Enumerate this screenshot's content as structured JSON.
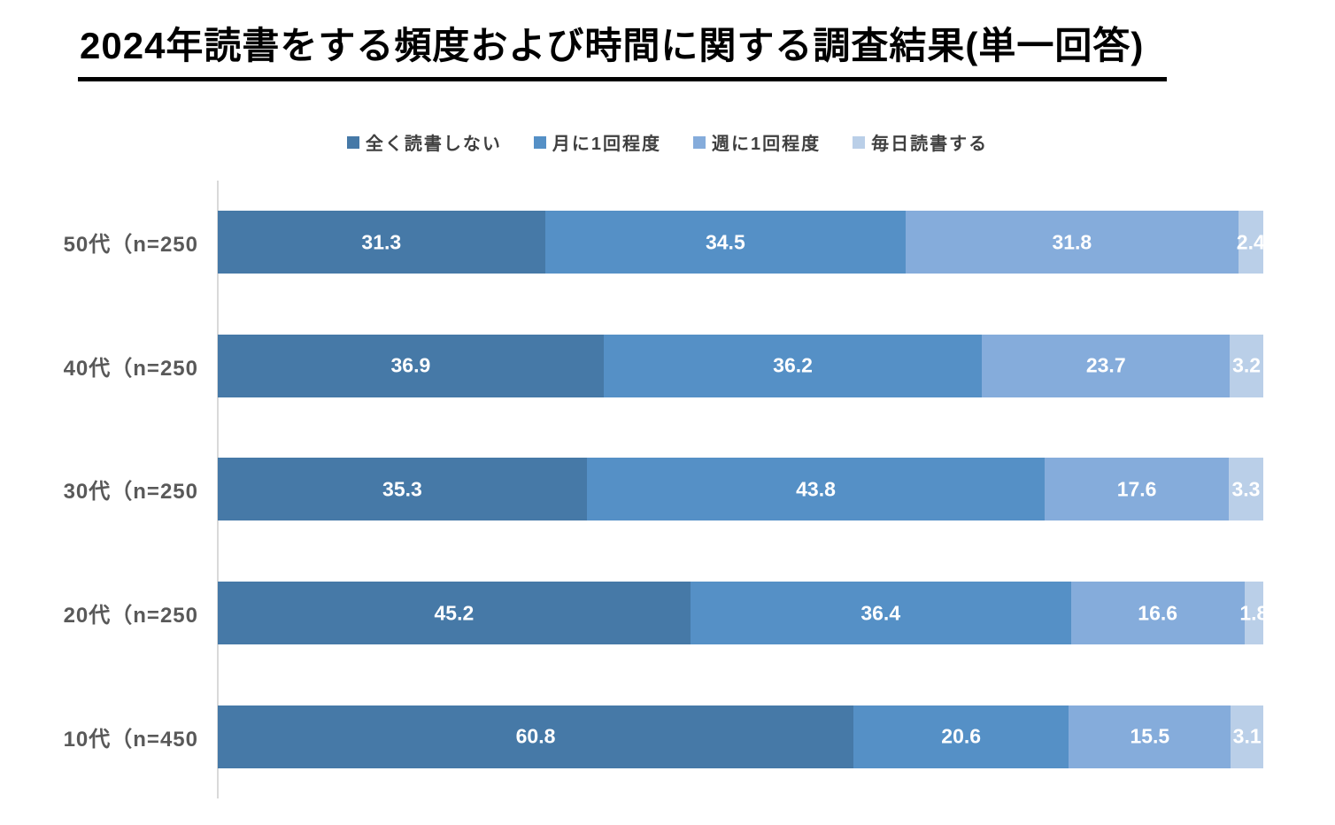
{
  "title": "2024年読書をする頻度および時間に関する調査結果(単一回答)",
  "legend": [
    {
      "label": "全く読書しない",
      "color": "#4679a7"
    },
    {
      "label": "月に1回程度",
      "color": "#5590c6"
    },
    {
      "label": "週に1回程度",
      "color": "#85acdb"
    },
    {
      "label": "毎日読書する",
      "color": "#bacfe8"
    }
  ],
  "colors": {
    "series1": "#4679a7",
    "series2": "#5590c6",
    "series3": "#85acdb",
    "series4": "#bacfe8",
    "axis_line": "#d9d9d9",
    "category_text": "#595959",
    "legend_text": "#3f3f3f",
    "value_text": "#ffffff",
    "title_text": "#000000"
  },
  "chart_data": {
    "type": "bar",
    "orientation": "horizontal",
    "stacked": true,
    "title": "2024年読書をする頻度および時間に関する調査結果(単一回答)",
    "categories": [
      "50代（n=250",
      "40代（n=250",
      "30代（n=250",
      "20代（n=250",
      "10代（n=450"
    ],
    "series": [
      {
        "name": "全く読書しない",
        "color": "#4679a7",
        "values": [
          31.3,
          36.9,
          35.3,
          45.2,
          60.8
        ]
      },
      {
        "name": "月に1回程度",
        "color": "#5590c6",
        "values": [
          34.5,
          36.2,
          43.8,
          36.4,
          20.6
        ]
      },
      {
        "name": "週に1回程度",
        "color": "#85acdb",
        "values": [
          31.8,
          23.7,
          17.6,
          16.6,
          15.5
        ]
      },
      {
        "name": "毎日読書する",
        "color": "#bacfe8",
        "values": [
          2.4,
          3.2,
          3.3,
          1.8,
          3.1
        ]
      }
    ],
    "xlim": [
      0,
      100
    ],
    "value_labels": "inside-center",
    "legend_position": "top-center",
    "grid": false
  }
}
